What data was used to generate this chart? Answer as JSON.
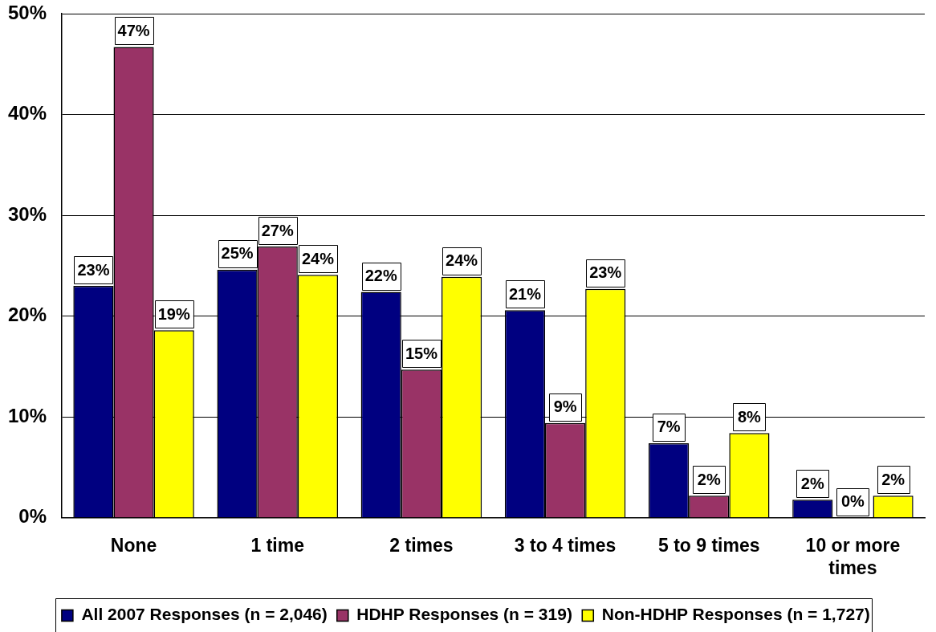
{
  "chart_data": {
    "type": "bar",
    "categories": [
      "None",
      "1 time",
      "2 times",
      "3 to 4 times",
      "5 to 9 times",
      "10 or more times"
    ],
    "series": [
      {
        "name": "All 2007 Responses (n = 2,046)",
        "color": "#000080",
        "values": [
          23.0,
          24.6,
          22.4,
          20.6,
          7.4,
          1.8
        ],
        "value_labels": [
          "23%",
          "25%",
          "22%",
          "21%",
          "7%",
          "2%"
        ]
      },
      {
        "name": "HDHP Responses (n = 319)",
        "color": "#993366",
        "values": [
          46.7,
          26.9,
          14.7,
          9.4,
          2.2,
          0
        ],
        "value_labels": [
          "47%",
          "27%",
          "15%",
          "9%",
          "2%",
          "0%"
        ]
      },
      {
        "name": "Non-HDHP Responses (n = 1,727)",
        "color": "#ffff00",
        "values": [
          18.6,
          24.1,
          23.9,
          22.7,
          8.4,
          2.2
        ],
        "value_labels": [
          "19%",
          "24%",
          "24%",
          "23%",
          "8%",
          "2%"
        ]
      }
    ],
    "ylim": [
      0,
      50
    ],
    "yticks": [
      {
        "value": 0,
        "label": "0%"
      },
      {
        "value": 10,
        "label": "10%"
      },
      {
        "value": 20,
        "label": "20%"
      },
      {
        "value": 30,
        "label": "30%"
      },
      {
        "value": 40,
        "label": "40%"
      },
      {
        "value": 50,
        "label": "50%"
      }
    ],
    "grid": "y",
    "legend": "bottom"
  }
}
